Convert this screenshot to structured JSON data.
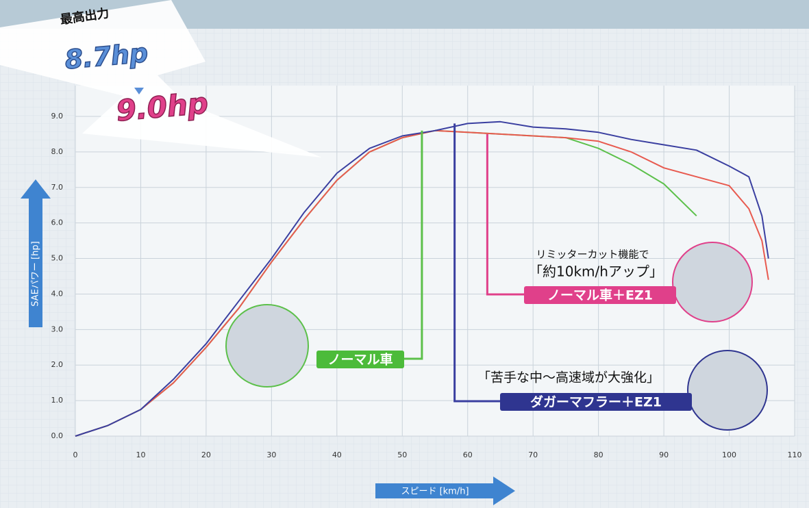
{
  "chart_data": {
    "type": "line",
    "headline": {
      "label": "最高出力",
      "before": "8.7hp",
      "after": "9.0hp"
    },
    "y_label": "SAEパワー [hp]",
    "x_label": "スピード [km/h]",
    "annotations": {
      "ez1_note": "リミッターカット機能で",
      "ez1_claim": "「約10km/hアップ」",
      "dagger_claim": "「苦手な中～高速域が大強化」"
    },
    "xlim": [
      0,
      110
    ],
    "xticks": [
      0,
      10,
      20,
      30,
      40,
      50,
      60,
      70,
      80,
      90,
      100,
      110
    ],
    "ylim": [
      0,
      9
    ],
    "yticks": [
      {
        "value": 0,
        "label": "0.0"
      },
      {
        "value": 1,
        "label": "1.0"
      },
      {
        "value": 2,
        "label": "2.0"
      },
      {
        "value": 3,
        "label": "3.0"
      },
      {
        "value": 4,
        "label": "4.0"
      },
      {
        "value": 5,
        "label": "5.0"
      },
      {
        "value": 6,
        "label": "6.0"
      },
      {
        "value": 7,
        "label": "7.0"
      },
      {
        "value": 8,
        "label": "8.0"
      },
      {
        "value": 9,
        "label": "9.0"
      }
    ],
    "grid": true,
    "series": [
      {
        "name": "ノーマル車",
        "color": "#5cc04a",
        "x": [
          0,
          5,
          10,
          15,
          20,
          25,
          30,
          35,
          40,
          45,
          50,
          55,
          60,
          65,
          70,
          75,
          80,
          85,
          90,
          95
        ],
        "values": [
          0,
          0.3,
          0.75,
          1.5,
          2.5,
          3.6,
          4.9,
          6.1,
          7.2,
          8.0,
          8.4,
          8.6,
          8.55,
          8.5,
          8.45,
          8.4,
          8.1,
          7.65,
          7.1,
          6.2
        ]
      },
      {
        "name": "ノーマル車＋EZ1",
        "color": "#e85a4f",
        "x": [
          0,
          5,
          10,
          15,
          20,
          25,
          30,
          35,
          40,
          45,
          50,
          55,
          60,
          65,
          70,
          75,
          80,
          85,
          90,
          95,
          100,
          103,
          105,
          106
        ],
        "values": [
          0,
          0.3,
          0.75,
          1.5,
          2.5,
          3.6,
          4.9,
          6.1,
          7.2,
          8.0,
          8.4,
          8.6,
          8.55,
          8.5,
          8.45,
          8.4,
          8.3,
          8.0,
          7.55,
          7.3,
          7.05,
          6.4,
          5.5,
          4.4
        ]
      },
      {
        "name": "ダガーマフラー＋EZ1",
        "color": "#3a3fa0",
        "x": [
          0,
          5,
          10,
          15,
          20,
          25,
          30,
          35,
          40,
          45,
          50,
          55,
          60,
          65,
          70,
          75,
          80,
          85,
          90,
          95,
          100,
          103,
          105,
          106
        ],
        "values": [
          0,
          0.3,
          0.75,
          1.6,
          2.6,
          3.8,
          5.0,
          6.3,
          7.4,
          8.1,
          8.45,
          8.6,
          8.8,
          8.85,
          8.7,
          8.65,
          8.55,
          8.35,
          8.2,
          8.05,
          7.6,
          7.3,
          6.2,
          5.0
        ]
      }
    ]
  }
}
